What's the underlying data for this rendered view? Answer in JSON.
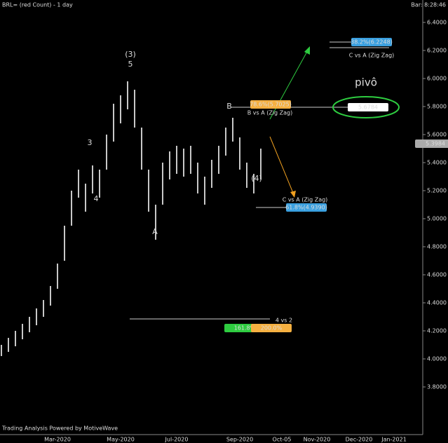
{
  "chart_data": {
    "type": "ohlc",
    "title": "BRL= (red Count) - 1 day",
    "clock": "Bar: 8:28:46",
    "footer": "Trading Analysis Powered by MotiveWave",
    "color": "#c8c8c8",
    "categories": [
      null,
      null,
      null,
      null,
      null,
      null,
      null,
      null,
      "Mar-2020",
      null,
      null,
      null,
      null,
      null,
      null,
      null,
      null,
      "May-2020",
      null,
      null,
      null,
      null,
      null,
      null,
      null,
      "Jul-2020",
      null,
      null,
      null,
      null,
      null,
      null,
      null,
      null,
      "Sep-2020",
      null,
      null,
      null,
      null,
      null,
      "Oct-05",
      null,
      null,
      null,
      null,
      "Nov-2020",
      null,
      null,
      null,
      null,
      null,
      "Dec-2020",
      null,
      null,
      null,
      null,
      "Jan-2021",
      null,
      null,
      null
    ],
    "high": [
      4.1,
      4.15,
      4.2,
      4.25,
      4.3,
      4.36,
      4.42,
      4.52,
      4.68,
      4.95,
      5.2,
      5.35,
      5.25,
      5.38,
      5.35,
      5.6,
      5.82,
      5.88,
      5.98,
      5.92,
      5.65,
      5.35,
      5.1,
      5.4,
      5.48,
      5.52,
      5.5,
      5.52,
      5.4,
      5.3,
      5.42,
      5.52,
      5.65,
      5.72,
      5.58,
      5.4,
      5.32,
      5.5,
      null,
      null,
      null,
      null,
      null,
      null,
      null,
      null,
      null,
      null,
      null,
      null,
      null,
      null,
      null,
      null,
      null,
      null,
      null,
      null,
      null,
      null
    ],
    "low": [
      4.02,
      4.05,
      4.09,
      4.14,
      4.19,
      4.24,
      4.3,
      4.38,
      4.5,
      4.7,
      4.95,
      5.15,
      5.05,
      5.18,
      5.15,
      5.35,
      5.55,
      5.68,
      5.78,
      5.65,
      5.35,
      5.05,
      4.85,
      5.1,
      5.28,
      5.32,
      5.3,
      5.32,
      5.18,
      5.1,
      5.22,
      5.32,
      5.45,
      5.55,
      5.35,
      5.22,
      5.18,
      5.28,
      null,
      null,
      null,
      null,
      null,
      null,
      null,
      null,
      null,
      null,
      null,
      null,
      null,
      null,
      null,
      null,
      null,
      null,
      null,
      null,
      null,
      null
    ],
    "ylim": [
      3.46,
      6.56
    ],
    "yticks": [
      {
        "value": 3.8,
        "label": "3.8000"
      },
      {
        "value": 4.0,
        "label": "4.0000"
      },
      {
        "value": 4.2,
        "label": "4.2000"
      },
      {
        "value": 4.4,
        "label": "4.4000"
      },
      {
        "value": 4.6,
        "label": "4.6000"
      },
      {
        "value": 4.8,
        "label": "4.8000"
      },
      {
        "value": 5.0,
        "label": "5.0000"
      },
      {
        "value": 5.2,
        "label": "5.2000"
      },
      {
        "value": 5.4,
        "label": "5.4000"
      },
      {
        "value": 5.6,
        "label": "5.6000"
      },
      {
        "value": 5.8,
        "label": "5.8000"
      },
      {
        "value": 6.0,
        "label": "6.0000"
      },
      {
        "value": 6.2,
        "label": "6.2000"
      },
      {
        "value": 6.4,
        "label": "6.4000"
      }
    ],
    "annotations": [
      "(3)",
      "5",
      "3",
      "4",
      "A",
      "B",
      "(4)",
      "78.6%(5.7025)",
      "B vs A (Zig Zag)",
      "38.2%(6.2248)",
      "C vs A (Zig Zag)",
      "C vs A (Zig Zag)",
      "61.8%(4.9390)",
      "161.8%",
      "200.0%",
      "4 vs 2",
      "pivô",
      "5.6784",
      "5.3984"
    ]
  }
}
